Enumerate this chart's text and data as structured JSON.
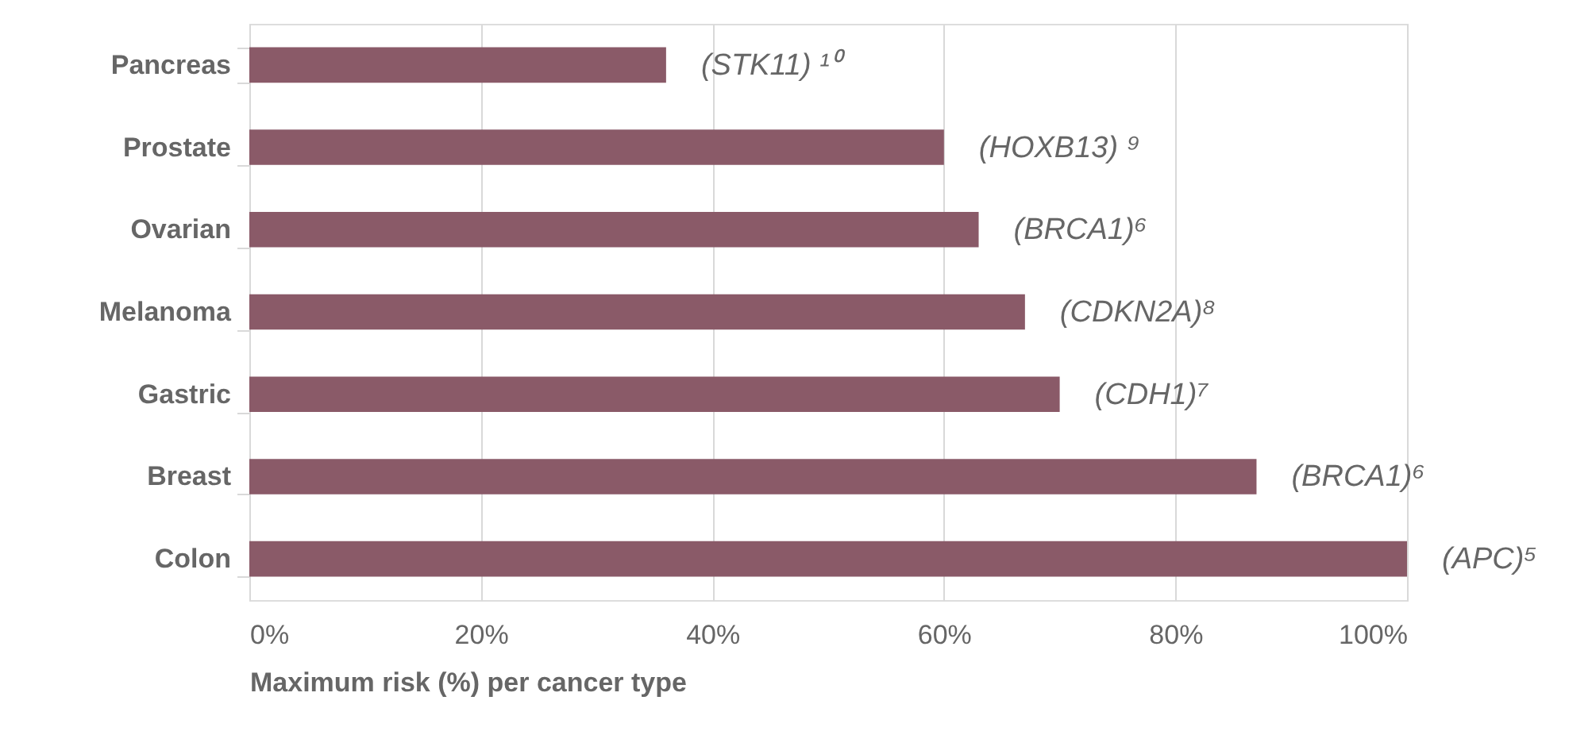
{
  "chart_data": {
    "type": "bar",
    "orientation": "horizontal",
    "categories": [
      "Pancreas",
      "Prostate",
      "Ovarian",
      "Melanoma",
      "Gastric",
      "Breast",
      "Colon"
    ],
    "values": [
      36,
      60,
      63,
      67,
      70,
      87,
      100
    ],
    "color": "#8a5a68",
    "xlabel": "Maximum risk (%) per cancer type",
    "xlim": [
      0,
      100
    ],
    "xticks": [
      {
        "value": 0,
        "label": "0%"
      },
      {
        "value": 20,
        "label": "20%"
      },
      {
        "value": 40,
        "label": "40%"
      },
      {
        "value": 60,
        "label": "60%"
      },
      {
        "value": 80,
        "label": "80%"
      },
      {
        "value": 100,
        "label": "100%"
      }
    ],
    "grid": "x",
    "annotations": [
      {
        "text": "(STK11) ¹⁰",
        "x": 36,
        "y": "Pancreas"
      },
      {
        "text": "(HOXB13) ⁹",
        "x": 60,
        "y": "Prostate"
      },
      {
        "text": "(BRCA1)⁶",
        "x": 63,
        "y": "Ovarian"
      },
      {
        "text": "(CDKN2A)⁸",
        "x": 67,
        "y": "Melanoma"
      },
      {
        "text": "(CDH1)⁷",
        "x": 70,
        "y": "Gastric"
      },
      {
        "text": "(BRCA1)⁶",
        "x": 87,
        "y": "Breast"
      },
      {
        "text": "(APC)⁵",
        "x": 100,
        "y": "Colon"
      }
    ]
  }
}
